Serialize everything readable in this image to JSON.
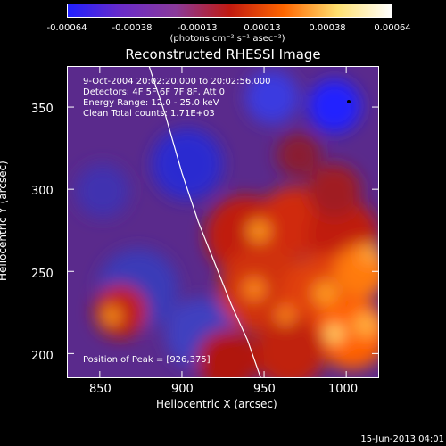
{
  "colorbar": {
    "ticks": [
      "-0.00064",
      "-0.00038",
      "-0.00013",
      "0.00013",
      "0.00038",
      "0.00064"
    ],
    "units": "(photons cm⁻² s⁻¹ asec⁻²)",
    "colors": [
      "#2020ff",
      "#6a2cc8",
      "#8a3a9a",
      "#c01a10",
      "#ff6600",
      "#ffe070",
      "#ffffff"
    ]
  },
  "chart_data": {
    "type": "heatmap",
    "title": "Reconstructed RHESSI Image",
    "xlabel": "Heliocentric X (arcsec)",
    "ylabel": "Heliocentric Y (arcsec)",
    "xlim": [
      830,
      1020
    ],
    "ylim": [
      185,
      375
    ],
    "xticks": [
      850,
      900,
      950,
      1000
    ],
    "yticks": [
      200,
      250,
      300,
      350
    ],
    "info_lines": [
      "9-Oct-2004 20:02:20.000 to 20:02:56.000",
      "Detectors: 4F 5F 6F 7F 8F, Att 0",
      "Energy Range: 12.0 - 25.0 keV",
      "Clean     Total counts: 1.71E+03"
    ],
    "peak_label": "Position of Peak = [926,375]",
    "limb_points": [
      [
        880,
        375
      ],
      [
        890,
        345
      ],
      [
        900,
        310
      ],
      [
        910,
        280
      ],
      [
        920,
        255
      ],
      [
        930,
        230
      ],
      [
        940,
        208
      ],
      [
        948,
        185
      ]
    ]
  },
  "timestamp": "15-Jun-2013 04:01"
}
